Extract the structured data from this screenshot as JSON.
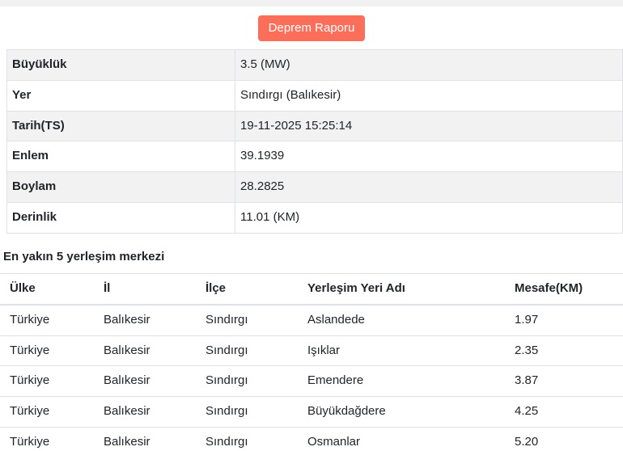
{
  "colors": {
    "button_background": "#fa6e5a",
    "button_text": "#ffffff",
    "row_stripe": "#f2f2f2",
    "table_border": "#dee2e6",
    "text": "#212529",
    "top_bar": "#f1f1f1"
  },
  "report_button": {
    "label": "Deprem Raporu"
  },
  "details": {
    "rows": [
      {
        "label": "Büyüklük",
        "value": "3.5 (MW)"
      },
      {
        "label": "Yer",
        "value": "Sındırgı (Balıkesir)"
      },
      {
        "label": "Tarih(TS)",
        "value": "19-11-2025 15:25:14"
      },
      {
        "label": "Enlem",
        "value": "39.1939"
      },
      {
        "label": "Boylam",
        "value": "28.2825"
      },
      {
        "label": "Derinlik",
        "value": "11.01 (KM)"
      }
    ]
  },
  "nearest": {
    "heading": "En yakın 5 yerleşim merkezi",
    "columns": [
      "Ülke",
      "İl",
      "İlçe",
      "Yerleşim Yeri Adı",
      "Mesafe(KM)"
    ],
    "rows": [
      [
        "Türkiye",
        "Balıkesir",
        "Sındırgı",
        "Aslandede",
        "1.97"
      ],
      [
        "Türkiye",
        "Balıkesir",
        "Sındırgı",
        "Işıklar",
        "2.35"
      ],
      [
        "Türkiye",
        "Balıkesir",
        "Sındırgı",
        "Emendere",
        "3.87"
      ],
      [
        "Türkiye",
        "Balıkesir",
        "Sındırgı",
        "Büyükdağdere",
        "4.25"
      ],
      [
        "Türkiye",
        "Balıkesir",
        "Sındırgı",
        "Osmanlar",
        "5.20"
      ]
    ]
  }
}
